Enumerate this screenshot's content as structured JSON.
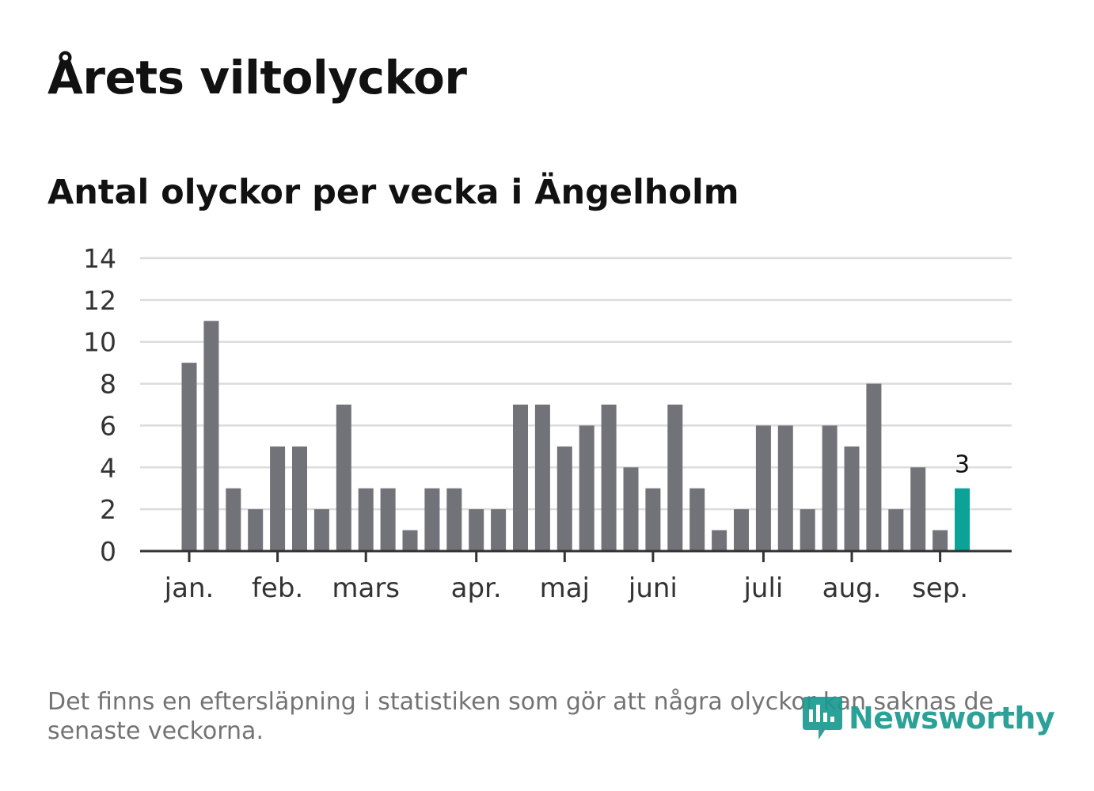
{
  "title": "Årets viltolyckor",
  "subtitle": "Antal olyckor per vecka i Ängelholm",
  "note": "Det finns en eftersläpning i statistiken som gör att några olyckor kan saknas de senaste veckorna.",
  "logo": {
    "text": "Newsworthy",
    "icon": "newsworthy-chart-bubble-icon",
    "color": "#1a9a8f"
  },
  "chart_data": {
    "type": "bar",
    "title": "Årets viltolyckor",
    "subtitle": "Antal olyckor per vecka i Ängelholm",
    "xlabel": "",
    "ylabel": "",
    "ylim": [
      0,
      14
    ],
    "yticks": [
      "0",
      "2",
      "4",
      "6",
      "8",
      "10",
      "12",
      "14"
    ],
    "grid": true,
    "legend": "none",
    "month_labels": [
      {
        "label": "jan.",
        "week": 1
      },
      {
        "label": "feb.",
        "week": 5
      },
      {
        "label": "mars",
        "week": 9
      },
      {
        "label": "apr.",
        "week": 14
      },
      {
        "label": "maj",
        "week": 18
      },
      {
        "label": "juni",
        "week": 22
      },
      {
        "label": "juli",
        "week": 27
      },
      {
        "label": "aug.",
        "week": 31
      },
      {
        "label": "sep.",
        "week": 35
      }
    ],
    "weeks": [
      1,
      2,
      3,
      4,
      5,
      6,
      7,
      8,
      9,
      10,
      11,
      12,
      13,
      14,
      15,
      16,
      17,
      18,
      19,
      20,
      21,
      22,
      23,
      24,
      25,
      26,
      27,
      28,
      29,
      30,
      31,
      32,
      33,
      34,
      35,
      36
    ],
    "values": [
      9,
      11,
      3,
      2,
      5,
      5,
      2,
      7,
      3,
      3,
      1,
      3,
      3,
      2,
      2,
      7,
      7,
      5,
      6,
      7,
      4,
      3,
      7,
      3,
      1,
      2,
      6,
      6,
      2,
      6,
      5,
      8,
      2,
      4,
      1,
      3
    ],
    "bar_color": "#727279",
    "highlight_color": "#0ba298",
    "highlight_label": "3"
  }
}
